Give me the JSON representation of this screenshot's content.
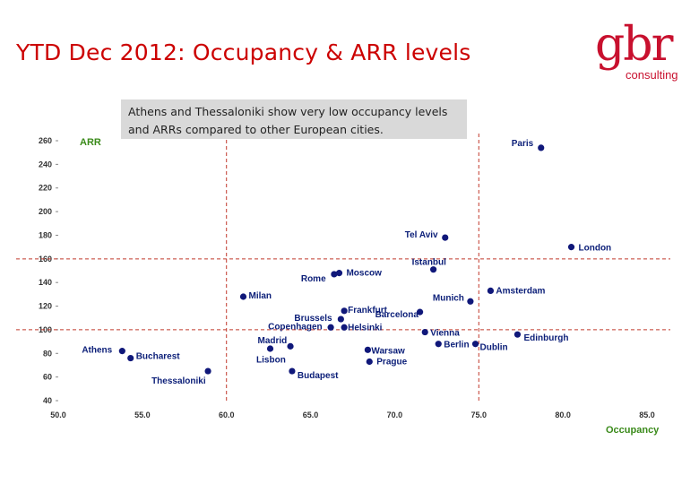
{
  "title": "YTD Dec 2012: Occupancy & ARR levels",
  "logo": {
    "mark": "gbr",
    "sub": "consulting"
  },
  "note": "Athens and Thessaloniki show very low occupancy levels and ARRs compared to other European cities.",
  "colors": {
    "title": "#cc0000",
    "point": "#10187a",
    "label": "#0b1e78",
    "axis_name": "#3a8a1a",
    "ref_line": "#c0392b"
  },
  "chart_data": {
    "type": "scatter",
    "xlabel": "Occupancy",
    "ylabel": "ARR",
    "xlim": [
      50,
      85
    ],
    "ylim": [
      40,
      260
    ],
    "x_ticks": [
      "50.0",
      "55.0",
      "60.0",
      "65.0",
      "70.0",
      "75.0",
      "80.0",
      "85.0"
    ],
    "y_ticks": [
      "260",
      "240",
      "220",
      "200",
      "180",
      "160",
      "140",
      "120",
      "100",
      "80",
      "60",
      "40"
    ],
    "ref_lines": {
      "x": [
        60,
        75
      ],
      "y": [
        100,
        160
      ]
    },
    "points": [
      {
        "name": "Paris",
        "x": 78.7,
        "y": 254
      },
      {
        "name": "Tel Aviv",
        "x": 73.0,
        "y": 178
      },
      {
        "name": "London",
        "x": 80.5,
        "y": 170
      },
      {
        "name": "Istanbul",
        "x": 72.3,
        "y": 151
      },
      {
        "name": "Rome",
        "x": 66.4,
        "y": 147
      },
      {
        "name": "Moscow",
        "x": 66.7,
        "y": 148
      },
      {
        "name": "Amsterdam",
        "x": 75.7,
        "y": 133
      },
      {
        "name": "Milan",
        "x": 61.0,
        "y": 128
      },
      {
        "name": "Munich",
        "x": 74.5,
        "y": 124
      },
      {
        "name": "Frankfurt",
        "x": 67.0,
        "y": 116
      },
      {
        "name": "Barcelona",
        "x": 71.5,
        "y": 115
      },
      {
        "name": "Brussels",
        "x": 66.8,
        "y": 109
      },
      {
        "name": "Copenhagen",
        "x": 66.2,
        "y": 102
      },
      {
        "name": "Helsinki",
        "x": 67.0,
        "y": 102
      },
      {
        "name": "Vienna",
        "x": 71.8,
        "y": 98
      },
      {
        "name": "Edinburgh",
        "x": 77.3,
        "y": 96
      },
      {
        "name": "Madrid",
        "x": 62.6,
        "y": 84
      },
      {
        "name": "Berlin",
        "x": 72.6,
        "y": 88
      },
      {
        "name": "Dublin",
        "x": 74.8,
        "y": 88
      },
      {
        "name": "Lisbon",
        "x": 63.8,
        "y": 86
      },
      {
        "name": "Warsaw",
        "x": 68.4,
        "y": 83
      },
      {
        "name": "Prague",
        "x": 68.5,
        "y": 73
      },
      {
        "name": "Athens",
        "x": 53.8,
        "y": 82
      },
      {
        "name": "Bucharest",
        "x": 54.3,
        "y": 76
      },
      {
        "name": "Thessaloniki",
        "x": 58.9,
        "y": 65
      },
      {
        "name": "Budapest",
        "x": 63.9,
        "y": 65
      }
    ]
  }
}
